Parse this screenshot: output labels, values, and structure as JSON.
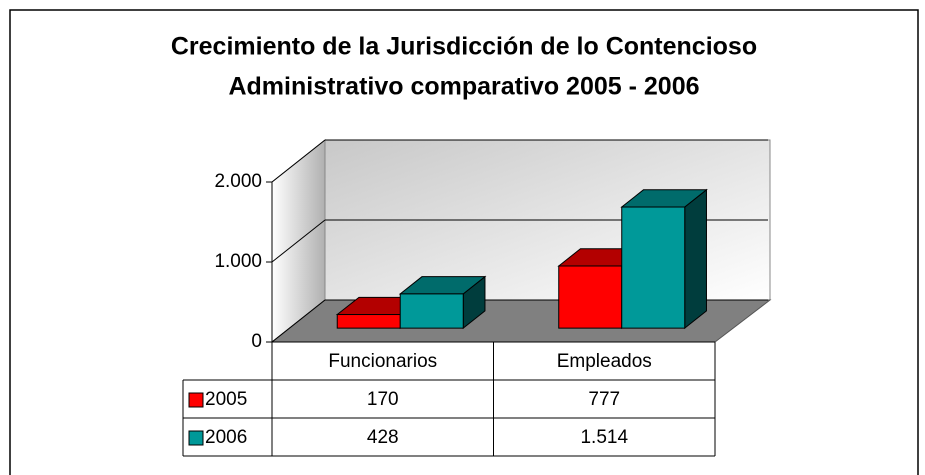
{
  "chart_data": {
    "type": "bar3d",
    "title": [
      "Crecimiento de la Jurisdicción de lo Contencioso",
      "Administrativo  comparativo 2005 - 2006"
    ],
    "categories": [
      "Funcionarios",
      "Empleados"
    ],
    "series": [
      {
        "name": "2005",
        "color": "#ff0000",
        "values": [
          170,
          777
        ],
        "value_labels": [
          "170",
          "777"
        ]
      },
      {
        "name": "2006",
        "color": "#009999",
        "values": [
          428,
          1514
        ],
        "value_labels": [
          "428",
          "1.514"
        ]
      }
    ],
    "ylim": [
      0,
      2000
    ],
    "yticks": [
      0,
      {
        "value": 1000,
        "label": "1.000"
      },
      {
        "value": 2000,
        "label": "2.000"
      }
    ],
    "grid": true
  }
}
